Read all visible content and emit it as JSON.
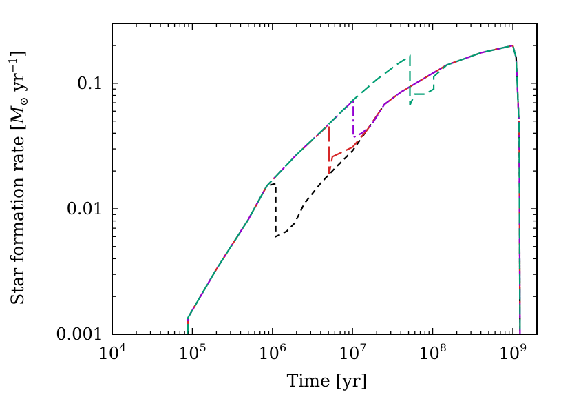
{
  "chart_data": {
    "type": "line",
    "xlabel": "Time [yr]",
    "ylabel_parts": {
      "text": "Star formation rate [",
      "sym": "M",
      "sub": "⊙",
      "unit": " yr",
      "sup": "−1",
      "close": "]"
    },
    "x_scale": "log",
    "y_scale": "log",
    "xlim": [
      10000,
      2000000000
    ],
    "ylim": [
      0.001,
      0.3
    ],
    "x_ticks": [
      {
        "base": "10",
        "exp": "4",
        "value": 10000
      },
      {
        "base": "10",
        "exp": "5",
        "value": 100000
      },
      {
        "base": "10",
        "exp": "6",
        "value": 1000000
      },
      {
        "base": "10",
        "exp": "7",
        "value": 10000000
      },
      {
        "base": "10",
        "exp": "8",
        "value": 100000000
      },
      {
        "base": "10",
        "exp": "9",
        "value": 1000000000
      }
    ],
    "y_ticks": [
      {
        "label": "0.001",
        "value": 0.001
      },
      {
        "label": "0.01",
        "value": 0.01
      },
      {
        "label": "0.1",
        "value": 0.1
      }
    ],
    "grid": false,
    "legend": "none",
    "series": [
      {
        "color": "#000000",
        "dash": "dashed-short",
        "points": [
          [
            88000,
            0.001
          ],
          [
            88000,
            0.00135
          ],
          [
            200000,
            0.0033
          ],
          [
            500000,
            0.0082
          ],
          [
            850000,
            0.0152
          ],
          [
            1100000,
            0.0159
          ],
          [
            1100000,
            0.006
          ],
          [
            1500000,
            0.0066
          ],
          [
            1900000,
            0.0077
          ],
          [
            2500000,
            0.011
          ],
          [
            4000000,
            0.016
          ],
          [
            6000000,
            0.021
          ],
          [
            10000000,
            0.029
          ],
          [
            15000000,
            0.042
          ],
          [
            25000000,
            0.068
          ],
          [
            40000000,
            0.085
          ],
          [
            70000000,
            0.105
          ],
          [
            150000000,
            0.14
          ],
          [
            400000000,
            0.175
          ],
          [
            1000000000,
            0.2
          ],
          [
            1100000000,
            0.16
          ],
          [
            1200000000,
            0.045
          ],
          [
            1230000000,
            0.001
          ]
        ]
      },
      {
        "color": "#d62728",
        "dash": "dashed-long",
        "points": [
          [
            88000,
            0.001
          ],
          [
            88000,
            0.00135
          ],
          [
            200000,
            0.0033
          ],
          [
            500000,
            0.0082
          ],
          [
            850000,
            0.0152
          ],
          [
            2000000,
            0.027
          ],
          [
            5100000,
            0.047
          ],
          [
            5100000,
            0.019
          ],
          [
            5600000,
            0.026
          ],
          [
            10000000,
            0.031
          ],
          [
            15000000,
            0.042
          ],
          [
            25000000,
            0.068
          ],
          [
            40000000,
            0.085
          ],
          [
            70000000,
            0.105
          ],
          [
            150000000,
            0.14
          ],
          [
            400000000,
            0.175
          ],
          [
            1000000000,
            0.2
          ],
          [
            1100000000,
            0.16
          ],
          [
            1200000000,
            0.045
          ],
          [
            1230000000,
            0.001
          ]
        ]
      },
      {
        "color": "#9400d3",
        "dash": "dash-dot",
        "points": [
          [
            88000,
            0.001
          ],
          [
            88000,
            0.00135
          ],
          [
            200000,
            0.0033
          ],
          [
            500000,
            0.0082
          ],
          [
            850000,
            0.0152
          ],
          [
            2000000,
            0.027
          ],
          [
            5000000,
            0.047
          ],
          [
            10200000,
            0.073
          ],
          [
            10200000,
            0.037
          ],
          [
            13000000,
            0.04
          ],
          [
            17000000,
            0.046
          ],
          [
            25000000,
            0.068
          ],
          [
            40000000,
            0.085
          ],
          [
            70000000,
            0.105
          ],
          [
            150000000,
            0.14
          ],
          [
            400000000,
            0.175
          ],
          [
            1000000000,
            0.2
          ],
          [
            1100000000,
            0.16
          ],
          [
            1200000000,
            0.045
          ],
          [
            1230000000,
            0.001
          ]
        ]
      },
      {
        "color": "#009e73",
        "dash": "dashed-medium",
        "points": [
          [
            88000,
            0.001
          ],
          [
            88000,
            0.00135
          ],
          [
            200000,
            0.0033
          ],
          [
            500000,
            0.0082
          ],
          [
            850000,
            0.0152
          ],
          [
            2000000,
            0.027
          ],
          [
            5000000,
            0.047
          ],
          [
            10000000,
            0.073
          ],
          [
            20000000,
            0.107
          ],
          [
            35000000,
            0.14
          ],
          [
            52000000,
            0.165
          ],
          [
            52000000,
            0.067
          ],
          [
            60000000,
            0.082
          ],
          [
            80000000,
            0.082
          ],
          [
            103000000,
            0.09
          ],
          [
            103000000,
            0.113
          ],
          [
            150000000,
            0.14
          ],
          [
            400000000,
            0.175
          ],
          [
            1000000000,
            0.2
          ],
          [
            1100000000,
            0.16
          ],
          [
            1200000000,
            0.045
          ],
          [
            1230000000,
            0.001
          ]
        ]
      }
    ]
  }
}
